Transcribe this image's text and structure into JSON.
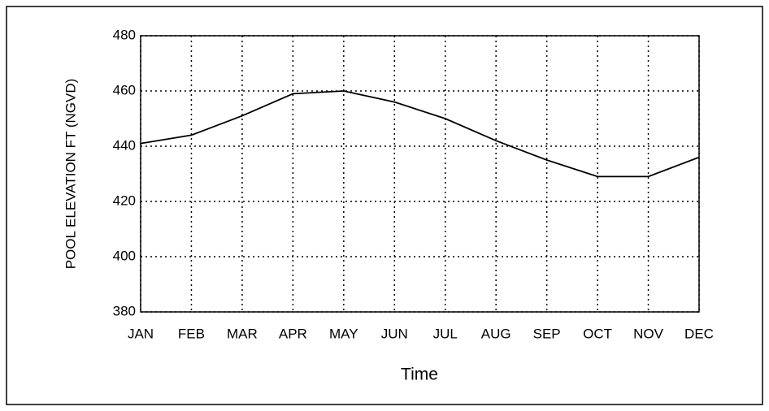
{
  "chart_data": {
    "type": "line",
    "categories": [
      "JAN",
      "FEB",
      "MAR",
      "APR",
      "MAY",
      "JUN",
      "JUL",
      "AUG",
      "SEP",
      "OCT",
      "NOV",
      "DEC"
    ],
    "values": [
      441,
      444,
      451,
      459,
      460,
      456,
      450,
      442,
      435,
      429,
      429,
      436
    ],
    "color": "#000000",
    "xlabel": "Time",
    "ylabel": "POOL ELEVATION FT (NGVD)",
    "ylim": [
      380,
      480
    ],
    "yticks": [
      380,
      400,
      420,
      440,
      460,
      480
    ],
    "grid": true
  }
}
